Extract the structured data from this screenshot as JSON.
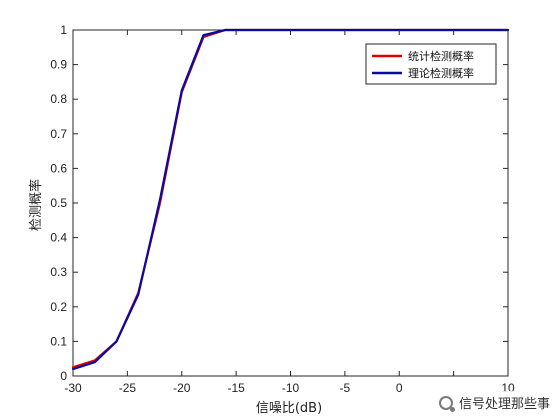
{
  "chart_data": {
    "type": "line",
    "title": "",
    "xlabel": "信噪比(dB)",
    "ylabel": "检测概率",
    "xlim": [
      -30,
      10
    ],
    "ylim": [
      0,
      1
    ],
    "xticks": [
      -30,
      -25,
      -20,
      -15,
      -10,
      -5,
      0,
      5,
      10
    ],
    "xtick_labels": [
      "-30",
      "-25",
      "-20",
      "-15",
      "-10",
      "-5",
      "0",
      "",
      "10"
    ],
    "yticks": [
      0,
      0.1,
      0.2,
      0.3,
      0.4,
      0.5,
      0.6,
      0.7,
      0.8,
      0.9,
      1
    ],
    "ytick_labels": [
      "0",
      "0.1",
      "0.2",
      "0.3",
      "0.4",
      "0.5",
      "0.6",
      "0.7",
      "0.8",
      "0.9",
      "1"
    ],
    "grid": false,
    "legend_position": "top-right",
    "series": [
      {
        "name": "统计检测概率",
        "color": "#e00000",
        "x": [
          -30,
          -28,
          -26,
          -24,
          -22,
          -20,
          -18,
          -16,
          -14,
          -12,
          -10,
          -8,
          -6,
          -4,
          -2,
          0,
          2,
          4,
          6,
          8,
          10
        ],
        "y": [
          0.025,
          0.045,
          0.1,
          0.24,
          0.5,
          0.82,
          0.98,
          1,
          1,
          1,
          1,
          1,
          1,
          1,
          1,
          1,
          1,
          1,
          1,
          1,
          1
        ]
      },
      {
        "name": "理论检测概率",
        "color": "#0a0aa0",
        "x": [
          -30,
          -28,
          -26,
          -24,
          -22,
          -20,
          -18,
          -16,
          -14,
          -12,
          -10,
          -8,
          -6,
          -4,
          -2,
          0,
          2,
          4,
          6,
          8,
          10
        ],
        "y": [
          0.02,
          0.04,
          0.1,
          0.235,
          0.51,
          0.825,
          0.985,
          1,
          1,
          1,
          1,
          1,
          1,
          1,
          1,
          1,
          1,
          1,
          1,
          1,
          1
        ]
      }
    ]
  },
  "watermark": {
    "icon": "wechat-logo-icon",
    "text": "信号处理那些事"
  }
}
